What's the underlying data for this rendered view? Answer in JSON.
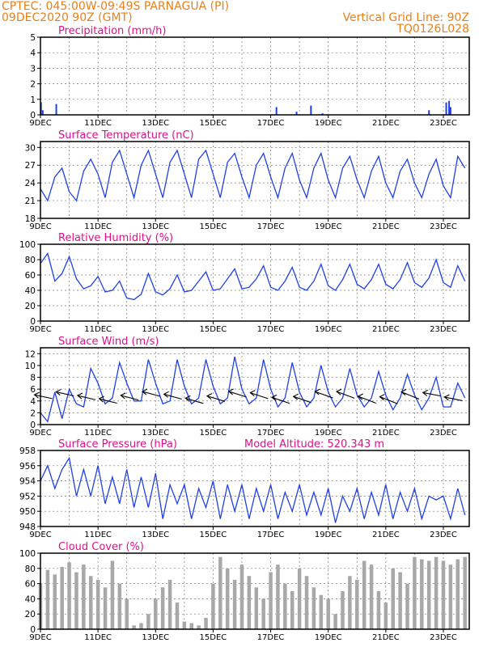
{
  "header": {
    "line1_left": "CPTEC:   045:00W-09:49S   PARNAGUA (PI)",
    "line2_left": "09DEC2020 90Z (GMT)",
    "line2_right": "Vertical Grid Line: 90Z",
    "line3_right": "TQ0126L028",
    "model_altitude": "Model Altitude: 520.343 m"
  },
  "colors": {
    "title": "#e0108a",
    "header": "#e8801a",
    "series": "#2040e8",
    "cloud": "#a8a8a8",
    "wind": "#000000"
  },
  "x_ticks": [
    "9DEC",
    "11DEC",
    "13DEC",
    "15DEC",
    "17DEC",
    "19DEC",
    "21DEC",
    "23DEC"
  ],
  "chart_data": [
    {
      "type": "bar",
      "title": "Precipitation (mm/h)",
      "ylim": [
        0,
        5
      ],
      "yticks": [
        0,
        1,
        2,
        3,
        4,
        5
      ],
      "x_unit": "days since 9DEC 00Z",
      "x": [
        0.02,
        0.08,
        0.55,
        8.2,
        8.9,
        9.4,
        9.8,
        13.5,
        14.1,
        14.2,
        14.25
      ],
      "values": [
        0.8,
        0.3,
        0.7,
        0.5,
        0.2,
        0.6,
        0.1,
        0.3,
        0.8,
        0.9,
        0.5
      ]
    },
    {
      "type": "line",
      "title": "Surface Temperature (nC)",
      "ylim": [
        18,
        31
      ],
      "yticks": [
        18,
        21,
        24,
        27,
        30
      ],
      "x_unit": "days since 9DEC 00Z",
      "x": [
        0,
        0.25,
        0.5,
        0.75,
        1,
        1.25,
        1.5,
        1.75,
        2,
        2.25,
        2.5,
        2.75,
        3,
        3.25,
        3.5,
        3.75,
        4,
        4.25,
        4.5,
        4.75,
        5,
        5.25,
        5.5,
        5.75,
        6,
        6.25,
        6.5,
        6.75,
        7,
        7.25,
        7.5,
        7.75,
        8,
        8.25,
        8.5,
        8.75,
        9,
        9.25,
        9.5,
        9.75,
        10,
        10.25,
        10.5,
        10.75,
        11,
        11.25,
        11.5,
        11.75,
        12,
        12.25,
        12.5,
        12.75,
        13,
        13.25,
        13.5,
        13.75,
        14,
        14.25,
        14.5,
        14.75
      ],
      "values": [
        23,
        21,
        25,
        26.5,
        22.5,
        21,
        26,
        28,
        25.5,
        21.5,
        27.5,
        29.5,
        25.5,
        21.5,
        27,
        29.5,
        25.5,
        21.5,
        27.5,
        29.5,
        25.5,
        21.5,
        28,
        29.5,
        25.5,
        21.5,
        27.5,
        29,
        25,
        21.5,
        27,
        29,
        25,
        21.5,
        26.5,
        29,
        24.5,
        21.5,
        26.5,
        29,
        24.5,
        21.5,
        26.5,
        28.5,
        24.5,
        21.5,
        26,
        28.5,
        24,
        21.5,
        26,
        28,
        24,
        21.5,
        25.5,
        28,
        23.5,
        21.5,
        28.5,
        26.5
      ]
    },
    {
      "type": "line",
      "title": "Relative Humidity (%)",
      "ylim": [
        0,
        100
      ],
      "yticks": [
        0,
        20,
        40,
        60,
        80,
        100
      ],
      "x_unit": "days since 9DEC 00Z",
      "x": [
        0,
        0.25,
        0.5,
        0.75,
        1,
        1.25,
        1.5,
        1.75,
        2,
        2.25,
        2.5,
        2.75,
        3,
        3.25,
        3.5,
        3.75,
        4,
        4.25,
        4.5,
        4.75,
        5,
        5.25,
        5.5,
        5.75,
        6,
        6.25,
        6.5,
        6.75,
        7,
        7.25,
        7.5,
        7.75,
        8,
        8.25,
        8.5,
        8.75,
        9,
        9.25,
        9.5,
        9.75,
        10,
        10.25,
        10.5,
        10.75,
        11,
        11.25,
        11.5,
        11.75,
        12,
        12.25,
        12.5,
        12.75,
        13,
        13.25,
        13.5,
        13.75,
        14,
        14.25,
        14.5,
        14.75
      ],
      "values": [
        75,
        88,
        52,
        62,
        84,
        55,
        42,
        46,
        58,
        38,
        40,
        52,
        30,
        28,
        35,
        62,
        38,
        34,
        42,
        60,
        38,
        40,
        52,
        64,
        40,
        42,
        55,
        68,
        42,
        44,
        55,
        72,
        44,
        40,
        52,
        70,
        44,
        40,
        52,
        74,
        46,
        40,
        54,
        74,
        48,
        42,
        54,
        74,
        48,
        42,
        54,
        76,
        50,
        44,
        56,
        80,
        50,
        44,
        72,
        52
      ]
    },
    {
      "type": "line",
      "title": "Surface Wind (m/s)",
      "ylim": [
        0,
        13
      ],
      "yticks": [
        0,
        2,
        4,
        6,
        8,
        10,
        12
      ],
      "x_unit": "days since 9DEC 00Z",
      "x": [
        0,
        0.25,
        0.5,
        0.75,
        1,
        1.25,
        1.5,
        1.75,
        2,
        2.25,
        2.5,
        2.75,
        3,
        3.25,
        3.5,
        3.75,
        4,
        4.25,
        4.5,
        4.75,
        5,
        5.25,
        5.5,
        5.75,
        6,
        6.25,
        6.5,
        6.75,
        7,
        7.25,
        7.5,
        7.75,
        8,
        8.25,
        8.5,
        8.75,
        9,
        9.25,
        9.5,
        9.75,
        10,
        10.25,
        10.5,
        10.75,
        11,
        11.25,
        11.5,
        11.75,
        12,
        12.25,
        12.5,
        12.75,
        13,
        13.25,
        13.5,
        13.75,
        14,
        14.25,
        14.5,
        14.75
      ],
      "values": [
        2,
        0.5,
        5.5,
        1,
        6,
        3.5,
        3,
        9.5,
        7,
        3.5,
        4.5,
        10.5,
        7,
        4,
        4,
        11,
        7,
        3.5,
        4,
        11,
        6.5,
        3.5,
        4.5,
        11,
        6.5,
        3.5,
        4.5,
        11.5,
        6,
        3.5,
        4.5,
        11,
        6,
        3,
        4.5,
        10.5,
        5.5,
        3,
        4.5,
        10,
        5.5,
        3,
        4.5,
        9.5,
        5,
        3,
        4.5,
        9,
        5,
        2.5,
        4.5,
        8.5,
        5,
        2.5,
        4.5,
        8,
        3,
        3,
        7,
        4.5
      ]
    },
    {
      "type": "line",
      "title": "Surface Pressure (hPa)",
      "ylim": [
        948,
        958
      ],
      "yticks": [
        948,
        950,
        952,
        954,
        956,
        958
      ],
      "x_unit": "days since 9DEC 00Z",
      "x": [
        0,
        0.25,
        0.5,
        0.75,
        1,
        1.25,
        1.5,
        1.75,
        2,
        2.25,
        2.5,
        2.75,
        3,
        3.25,
        3.5,
        3.75,
        4,
        4.25,
        4.5,
        4.75,
        5,
        5.25,
        5.5,
        5.75,
        6,
        6.25,
        6.5,
        6.75,
        7,
        7.25,
        7.5,
        7.75,
        8,
        8.25,
        8.5,
        8.75,
        9,
        9.25,
        9.5,
        9.75,
        10,
        10.25,
        10.5,
        10.75,
        11,
        11.25,
        11.5,
        11.75,
        12,
        12.25,
        12.5,
        12.75,
        13,
        13.25,
        13.5,
        13.75,
        14,
        14.25,
        14.5,
        14.75
      ],
      "values": [
        954,
        956,
        953,
        955.5,
        957,
        952,
        955.5,
        952,
        956,
        951,
        954.5,
        951,
        955.5,
        950.5,
        954.5,
        950.5,
        955,
        949,
        953.5,
        951,
        953.5,
        949,
        953,
        950.5,
        954,
        949,
        953.5,
        950,
        953.5,
        949,
        953,
        950,
        953.5,
        949,
        952.5,
        950,
        953.5,
        949.5,
        952.5,
        949.5,
        953,
        948.5,
        952,
        950,
        953,
        949,
        952.5,
        949.5,
        953.5,
        949,
        952.5,
        950,
        953,
        949,
        952,
        951.5,
        952,
        949,
        953,
        949.5
      ]
    },
    {
      "type": "bar",
      "title": "Cloud Cover (%)",
      "ylim": [
        0,
        100
      ],
      "yticks": [
        0,
        20,
        40,
        60,
        80,
        100
      ],
      "x_unit": "days since 9DEC 00Z",
      "x": [
        0,
        0.25,
        0.5,
        0.75,
        1,
        1.25,
        1.5,
        1.75,
        2,
        2.25,
        2.5,
        2.75,
        3,
        3.25,
        3.5,
        3.75,
        4,
        4.25,
        4.5,
        4.75,
        5,
        5.25,
        5.5,
        5.75,
        6,
        6.25,
        6.5,
        6.75,
        7,
        7.25,
        7.5,
        7.75,
        8,
        8.25,
        8.5,
        8.75,
        9,
        9.25,
        9.5,
        9.75,
        10,
        10.25,
        10.5,
        10.75,
        11,
        11.25,
        11.5,
        11.75,
        12,
        12.25,
        12.5,
        12.75,
        13,
        13.25,
        13.5,
        13.75,
        14,
        14.25,
        14.5,
        14.75
      ],
      "values": [
        60,
        78,
        72,
        82,
        88,
        75,
        85,
        70,
        65,
        55,
        90,
        60,
        40,
        5,
        8,
        20,
        40,
        55,
        65,
        35,
        10,
        8,
        5,
        15,
        60,
        95,
        80,
        65,
        85,
        70,
        55,
        40,
        75,
        85,
        60,
        50,
        80,
        70,
        55,
        45,
        40,
        20,
        50,
        70,
        65,
        90,
        85,
        50,
        35,
        80,
        75,
        60,
        95,
        92,
        90,
        95,
        90,
        85,
        92,
        95
      ]
    }
  ]
}
